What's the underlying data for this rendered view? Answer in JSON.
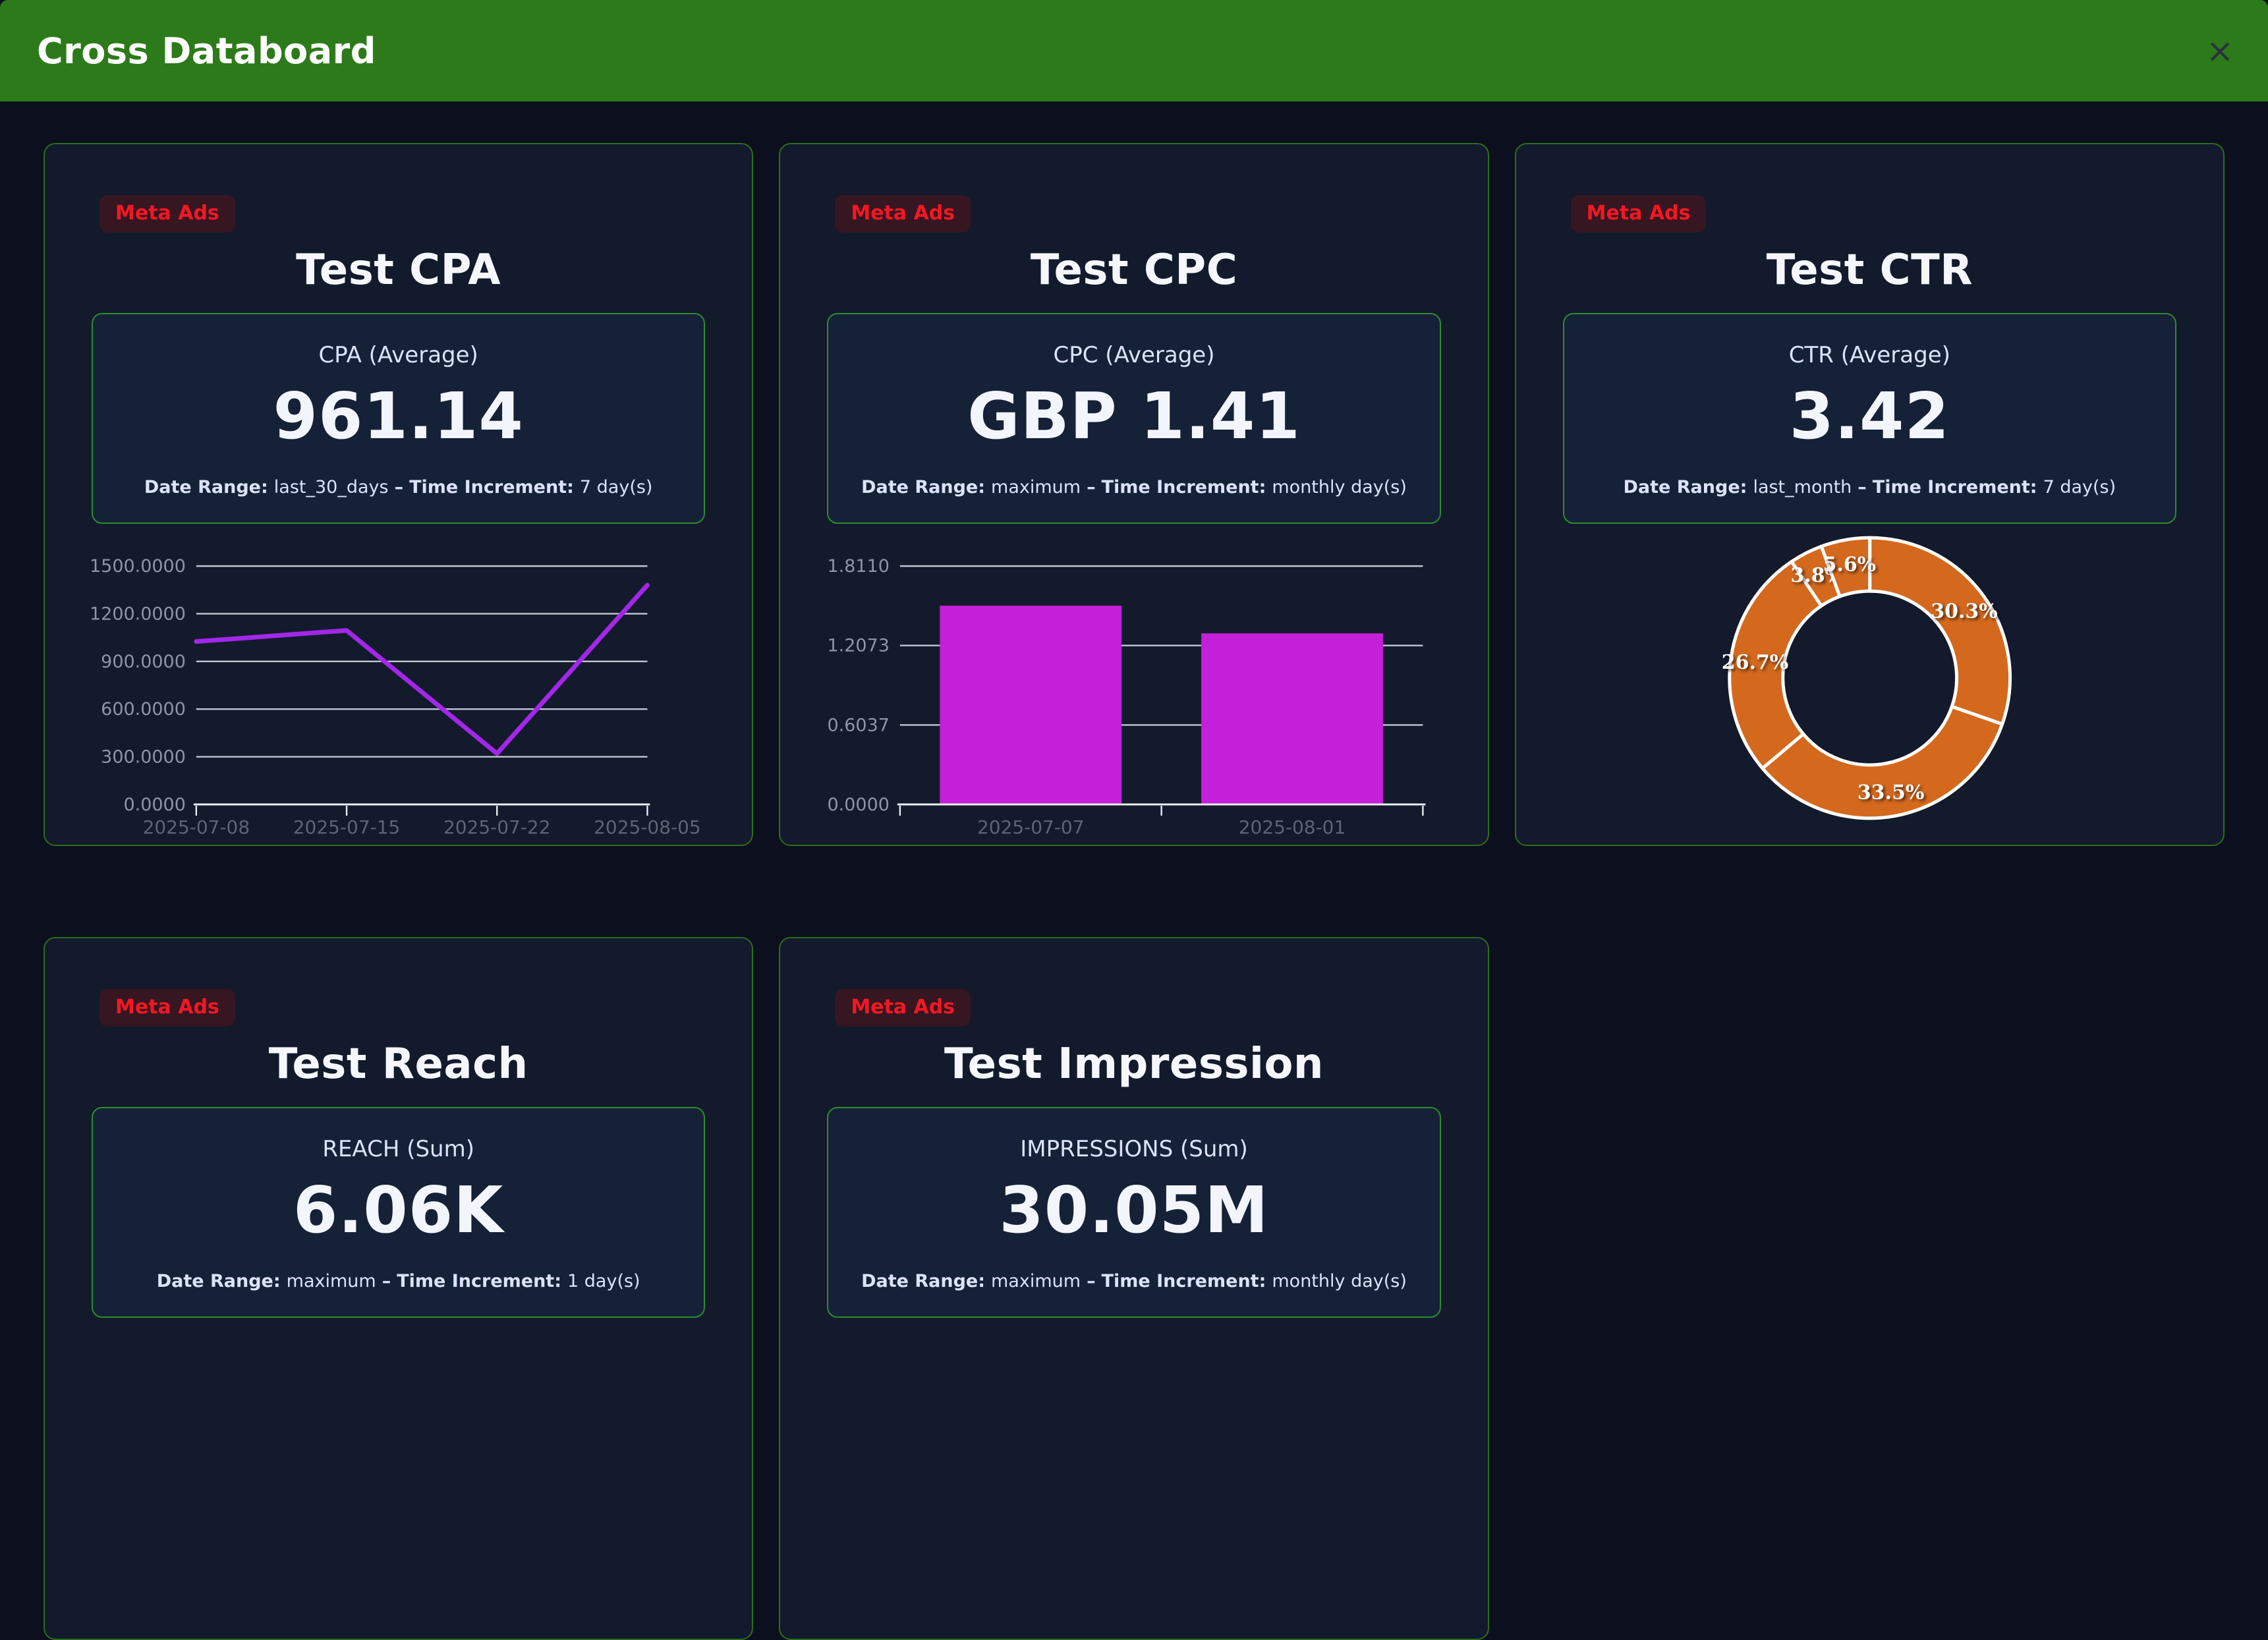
{
  "header": {
    "title": "Cross Databoard",
    "close_glyph": "×"
  },
  "cards": [
    {
      "badge": "Meta Ads",
      "title": "Test CPA",
      "metric_label": "CPA (Average)",
      "metric_value": "961.14",
      "date_range_label": "Date Range:",
      "date_range_value": "last_30_days",
      "separator": "–",
      "time_increment_label": "Time Increment:",
      "time_increment_value": "7 day(s)"
    },
    {
      "badge": "Meta Ads",
      "title": "Test CPC",
      "metric_label": "CPC (Average)",
      "metric_value": "GBP 1.41",
      "date_range_label": "Date Range:",
      "date_range_value": "maximum",
      "separator": "–",
      "time_increment_label": "Time Increment:",
      "time_increment_value": "monthly day(s)"
    },
    {
      "badge": "Meta Ads",
      "title": "Test CTR",
      "metric_label": "CTR (Average)",
      "metric_value": "3.42",
      "date_range_label": "Date Range:",
      "date_range_value": "last_month",
      "separator": "–",
      "time_increment_label": "Time Increment:",
      "time_increment_value": "7 day(s)"
    },
    {
      "badge": "Meta Ads",
      "title": "Test Reach",
      "metric_label": "REACH (Sum)",
      "metric_value": "6.06K",
      "date_range_label": "Date Range:",
      "date_range_value": "maximum",
      "separator": "–",
      "time_increment_label": "Time Increment:",
      "time_increment_value": "1 day(s)"
    },
    {
      "badge": "Meta Ads",
      "title": "Test Impression",
      "metric_label": "IMPRESSIONS (Sum)",
      "metric_value": "30.05M",
      "date_range_label": "Date Range:",
      "date_range_value": "maximum",
      "separator": "–",
      "time_increment_label": "Time Increment:",
      "time_increment_value": "monthly day(s)"
    }
  ],
  "chart_data": [
    {
      "type": "line",
      "name": "cpa-weekly-trend-line-chart",
      "title": "",
      "categories": [
        "2025-07-08",
        "2025-07-15",
        "2025-07-22",
        "2025-08-05"
      ],
      "values": [
        1025,
        1095,
        320,
        1380
      ],
      "y_ticks": [
        0,
        300,
        600,
        900,
        1200,
        1500
      ],
      "ylim": [
        0,
        1500
      ],
      "xlabel": "",
      "ylabel": "",
      "grid": true,
      "legend": false,
      "color": "#a327e8"
    },
    {
      "type": "bar",
      "name": "cpc-monthly-bar-chart",
      "title": "",
      "categories": [
        "2025-07-07",
        "2025-08-01"
      ],
      "values": [
        1.51,
        1.3
      ],
      "y_ticks": [
        0,
        0.6037,
        1.2073,
        1.811
      ],
      "ylim": [
        0,
        1.811
      ],
      "xlabel": "",
      "ylabel": "",
      "grid": true,
      "legend": false,
      "color": "#c41fd9"
    },
    {
      "type": "pie",
      "name": "ctr-share-donut-chart",
      "title": "",
      "donut": true,
      "labels": [
        "30.3%",
        "33.5%",
        "26.7%",
        "3.8%",
        "5.6%"
      ],
      "values": [
        30.3,
        33.5,
        26.7,
        3.8,
        5.6
      ],
      "start_angle": -90,
      "legend": false,
      "color": "#d4691e",
      "slice_border_color": "#ffffff"
    }
  ],
  "colors": {
    "header_green": "#2d7a1a",
    "page_background": "#0c0f1d",
    "card_background": "#121a2c",
    "card_border_green": "#2c6e1d",
    "metric_box_border_green": "#2e8b2e",
    "badge_red": "#f31723",
    "badge_background": "#351621",
    "line_purple": "#a327e8",
    "bar_magenta": "#c41fd9",
    "donut_orange": "#d4691e"
  }
}
